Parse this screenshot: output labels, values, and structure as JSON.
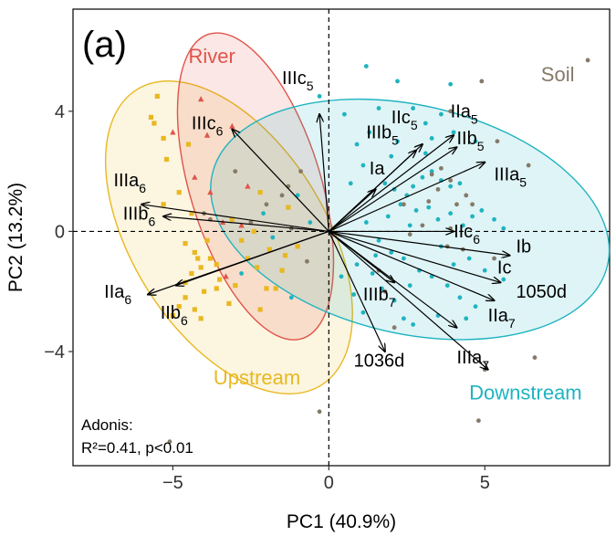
{
  "chart_data": {
    "type": "scatter",
    "panel_label": "(a)",
    "xlabel": "PC1 (40.9%)",
    "ylabel": "PC2 (13.2%)",
    "xlim": [
      -8.2,
      9.0
    ],
    "ylim": [
      -7.8,
      7.4
    ],
    "x_ticks": [
      -5,
      0,
      5
    ],
    "y_ticks": [
      -4,
      0,
      4
    ],
    "x_tick_labels": [
      "−5",
      "0",
      "5"
    ],
    "y_tick_labels": [
      "−4",
      "0",
      "4"
    ],
    "reference_lines": {
      "x": 0,
      "y": 0,
      "style": "dashed"
    },
    "grid": false,
    "stats_text": [
      "Adonis:",
      "R²=0.41, p<0.01"
    ],
    "groups": [
      {
        "name": "River",
        "color": "#e0544a",
        "marker": "triangle",
        "ellipse": {
          "cx": -2.35,
          "cy": 1.5,
          "rx": 2.1,
          "ry": 5.3,
          "angle_deg": -17
        },
        "label": {
          "text": "River",
          "x": -4.5,
          "y": 5.6
        },
        "points": [
          [
            -5.0,
            3.3
          ],
          [
            -4.1,
            4.4
          ],
          [
            -3.9,
            3.2
          ],
          [
            -3.8,
            1.3
          ],
          [
            -3.4,
            0.3
          ],
          [
            -2.8,
            0.2
          ],
          [
            -2.6,
            1.5
          ],
          [
            -3.3,
            -1.5
          ],
          [
            -3.1,
            3.5
          ],
          [
            -4.3,
            1.8
          ]
        ]
      },
      {
        "name": "Upstream",
        "color": "#e8b820",
        "marker": "square",
        "ellipse": {
          "cx": -3.2,
          "cy": -0.2,
          "rx": 3.1,
          "ry": 5.8,
          "angle_deg": -32
        },
        "label": {
          "text": "Upstream",
          "x": -3.7,
          "y": -5.1
        },
        "points": [
          [
            -5.5,
            4.5
          ],
          [
            -5.7,
            3.8
          ],
          [
            -5.6,
            3.6
          ],
          [
            -5.3,
            3.1
          ],
          [
            -5.2,
            2.4
          ],
          [
            -4.8,
            1.3
          ],
          [
            -4.4,
            0.6
          ],
          [
            -4.6,
            -0.4
          ],
          [
            -4.3,
            -0.7
          ],
          [
            -4.2,
            -0.9
          ],
          [
            -3.8,
            -0.9
          ],
          [
            -4.1,
            -1.2
          ],
          [
            -3.6,
            -1.1
          ],
          [
            -3.5,
            -1.6
          ],
          [
            -4.4,
            -1.4
          ],
          [
            -4.6,
            -1.7
          ],
          [
            -4.0,
            -2.0
          ],
          [
            -4.6,
            -2.2
          ],
          [
            -4.8,
            -2.5
          ],
          [
            -4.3,
            -2.6
          ],
          [
            -4.1,
            -2.9
          ],
          [
            -3.6,
            -1.9
          ],
          [
            -3.2,
            -2.4
          ],
          [
            -3.0,
            -1.8
          ],
          [
            -2.6,
            -0.9
          ],
          [
            -2.3,
            -1.2
          ],
          [
            -2.0,
            -1.9
          ],
          [
            -2.2,
            -2.6
          ],
          [
            -1.7,
            -1.9
          ],
          [
            -1.5,
            -1.3
          ],
          [
            -1.9,
            -0.6
          ],
          [
            -2.8,
            -0.3
          ],
          [
            -2.4,
            0.0
          ],
          [
            -1.3,
            0.8
          ],
          [
            -1.4,
            -0.8
          ],
          [
            -3.1,
            0.4
          ],
          [
            -2.2,
            1.3
          ],
          [
            -1.0,
            -0.5
          ],
          [
            -5.0,
            -2.8
          ],
          [
            -3.9,
            -0.3
          ],
          [
            -5.3,
            0.9
          ],
          [
            -4.5,
            2.9
          ]
        ]
      },
      {
        "name": "Downstream",
        "color": "#1eb4c0",
        "marker": "circle",
        "ellipse": {
          "cx": 2.6,
          "cy": 0.4,
          "rx": 6.5,
          "ry": 3.8,
          "angle_deg": 13
        },
        "label": {
          "text": "Downstream",
          "x": 4.5,
          "y": -5.6
        },
        "points": [
          [
            0.7,
            1.6
          ],
          [
            1.1,
            2.2
          ],
          [
            1.3,
            3.3
          ],
          [
            1.6,
            4.1
          ],
          [
            2.2,
            5.0
          ],
          [
            2.7,
            4.1
          ],
          [
            3.1,
            3.6
          ],
          [
            3.6,
            3.9
          ],
          [
            3.9,
            4.9
          ],
          [
            1.8,
            1.6
          ],
          [
            2.1,
            1.4
          ],
          [
            2.5,
            1.2
          ],
          [
            2.7,
            1.5
          ],
          [
            3.0,
            1.8
          ],
          [
            3.3,
            2.0
          ],
          [
            3.6,
            1.7
          ],
          [
            3.9,
            1.5
          ],
          [
            4.2,
            1.6
          ],
          [
            2.3,
            0.9
          ],
          [
            2.8,
            0.7
          ],
          [
            3.2,
            0.8
          ],
          [
            3.5,
            0.4
          ],
          [
            3.9,
            0.6
          ],
          [
            4.3,
            0.2
          ],
          [
            4.6,
            0.5
          ],
          [
            4.9,
            0.7
          ],
          [
            5.3,
            0.4
          ],
          [
            5.6,
            0.1
          ],
          [
            1.2,
            0.3
          ],
          [
            1.6,
            -0.3
          ],
          [
            2.0,
            -0.7
          ],
          [
            2.4,
            -0.9
          ],
          [
            2.9,
            -1.3
          ],
          [
            3.3,
            -1.5
          ],
          [
            3.8,
            -1.8
          ],
          [
            4.2,
            -2.2
          ],
          [
            4.7,
            -2.5
          ],
          [
            5.0,
            -1.3
          ],
          [
            4.5,
            -0.9
          ],
          [
            0.9,
            -1.1
          ],
          [
            1.4,
            -1.4
          ],
          [
            1.7,
            -1.9
          ],
          [
            2.1,
            -2.3
          ],
          [
            2.4,
            -2.9
          ],
          [
            2.7,
            -3.1
          ],
          [
            1.1,
            -2.7
          ],
          [
            0.8,
            -2.1
          ],
          [
            0.4,
            -1.5
          ],
          [
            -1.2,
            -2.2
          ],
          [
            -1.8,
            -0.2
          ],
          [
            -2.1,
            0.6
          ],
          [
            -1.0,
            1.2
          ],
          [
            -2.8,
            -1.4
          ],
          [
            -0.6,
            0.3
          ],
          [
            3.6,
            -0.5
          ],
          [
            4.0,
            -1.1
          ],
          [
            2.6,
            0.2
          ],
          [
            1.9,
            0.5
          ],
          [
            3.1,
            2.6
          ],
          [
            2.2,
            3.0
          ],
          [
            0.5,
            3.9
          ],
          [
            -0.3,
            4.5
          ],
          [
            1.2,
            5.5
          ],
          [
            4.7,
            3.0
          ],
          [
            3.3,
            3.1
          ],
          [
            2.6,
            -1.8
          ],
          [
            3.5,
            -2.8
          ],
          [
            1.5,
            -0.8
          ],
          [
            0.9,
            2.9
          ],
          [
            2.0,
            2.5
          ],
          [
            4.4,
            -2.9
          ],
          [
            5.6,
            -1.6
          ],
          [
            4.0,
            3.3
          ]
        ]
      },
      {
        "name": "Soil",
        "color": "#857a68",
        "marker": "circle",
        "label": {
          "text": "Soil",
          "x": 6.8,
          "y": 5.0
        },
        "points": [
          [
            8.3,
            5.7
          ],
          [
            4.9,
            5.0
          ],
          [
            3.9,
            4.0
          ],
          [
            5.4,
            3.0
          ],
          [
            6.4,
            2.2
          ],
          [
            4.4,
            1.2
          ],
          [
            3.9,
            1.7
          ],
          [
            3.6,
            2.1
          ],
          [
            3.3,
            1.9
          ],
          [
            4.6,
            0.9
          ],
          [
            4.1,
            0.9
          ],
          [
            3.2,
            1.0
          ],
          [
            3.0,
            0.2
          ],
          [
            2.6,
            -0.1
          ],
          [
            3.8,
            -0.5
          ],
          [
            4.3,
            -0.6
          ],
          [
            5.3,
            -0.9
          ],
          [
            3.9,
            0.1
          ],
          [
            1.6,
            -1.3
          ],
          [
            1.8,
            -2.0
          ],
          [
            2.1,
            -3.2
          ],
          [
            -3.8,
            0.4
          ],
          [
            -4.0,
            0.6
          ],
          [
            -2.5,
            0.3
          ],
          [
            -2.0,
            0.9
          ],
          [
            -1.5,
            1.2
          ],
          [
            -1.3,
            1.5
          ],
          [
            -0.9,
            2.0
          ],
          [
            -1.2,
            0.1
          ],
          [
            -3.0,
            2.0
          ],
          [
            -0.3,
            -6.0
          ],
          [
            -5.1,
            -7.0
          ],
          [
            6.6,
            -4.2
          ],
          [
            5.0,
            -4.6
          ],
          [
            4.8,
            -6.3
          ],
          [
            -0.7,
            -1.0
          ],
          [
            2.4,
            0.9
          ],
          [
            3.5,
            1.4
          ]
        ]
      }
    ],
    "vectors": [
      {
        "label": "IIIc",
        "sub": "5",
        "x": -0.3,
        "y": 3.9,
        "lx": -1.5,
        "ly": 4.9
      },
      {
        "label": "IIIc",
        "sub": "6",
        "x": -3.1,
        "y": 3.4,
        "lx": -4.4,
        "ly": 3.4
      },
      {
        "label": "IIIa",
        "sub": "6",
        "x": -6.0,
        "y": 0.9,
        "lx": -6.9,
        "ly": 1.5
      },
      {
        "label": "IIIb",
        "sub": "6",
        "x": -5.3,
        "y": 0.5,
        "lx": -6.6,
        "ly": 0.4
      },
      {
        "label": "IIa",
        "sub": "6",
        "x": -5.8,
        "y": -2.1,
        "lx": -7.2,
        "ly": -2.2
      },
      {
        "label": "IIb",
        "sub": "6",
        "x": -4.9,
        "y": -1.8,
        "lx": -5.4,
        "ly": -2.9
      },
      {
        "label": "Ia",
        "sub": "",
        "x": 1.5,
        "y": 1.4,
        "lx": 1.3,
        "ly": 1.9
      },
      {
        "label": "IIIb",
        "sub": "5",
        "x": 2.8,
        "y": 2.7,
        "lx": 1.2,
        "ly": 3.1
      },
      {
        "label": "IIc",
        "sub": "5",
        "x": 3.0,
        "y": 2.9,
        "lx": 2.0,
        "ly": 3.6
      },
      {
        "label": "IIa",
        "sub": "5",
        "x": 4.0,
        "y": 3.2,
        "lx": 3.9,
        "ly": 3.8
      },
      {
        "label": "IIb",
        "sub": "5",
        "x": 4.1,
        "y": 2.8,
        "lx": 4.1,
        "ly": 2.9
      },
      {
        "label": "IIIa",
        "sub": "5",
        "x": 5.0,
        "y": 2.3,
        "lx": 5.3,
        "ly": 1.7
      },
      {
        "label": "IIc",
        "sub": "6",
        "x": 4.0,
        "y": 0.0,
        "lx": 4.0,
        "ly": -0.2
      },
      {
        "label": "Ib",
        "sub": "",
        "x": 5.8,
        "y": -0.8,
        "lx": 6.0,
        "ly": -0.7
      },
      {
        "label": "Ic",
        "sub": "",
        "x": 5.5,
        "y": -1.7,
        "lx": 5.4,
        "ly": -1.4
      },
      {
        "label": "1050d",
        "sub": "",
        "x": 5.3,
        "y": -2.3,
        "lx": 6.0,
        "ly": -2.2
      },
      {
        "label": "IIa",
        "sub": "7",
        "x": 4.1,
        "y": -3.2,
        "lx": 5.1,
        "ly": -3.0
      },
      {
        "label": "IIIb",
        "sub": "7",
        "x": 2.1,
        "y": -1.7,
        "lx": 1.1,
        "ly": -2.3
      },
      {
        "label": "IIIa",
        "sub": "7",
        "x": 5.1,
        "y": -4.6,
        "lx": 4.1,
        "ly": -4.4
      },
      {
        "label": "1036d",
        "sub": "",
        "x": 1.8,
        "y": -4.0,
        "lx": 0.8,
        "ly": -4.5
      }
    ]
  }
}
